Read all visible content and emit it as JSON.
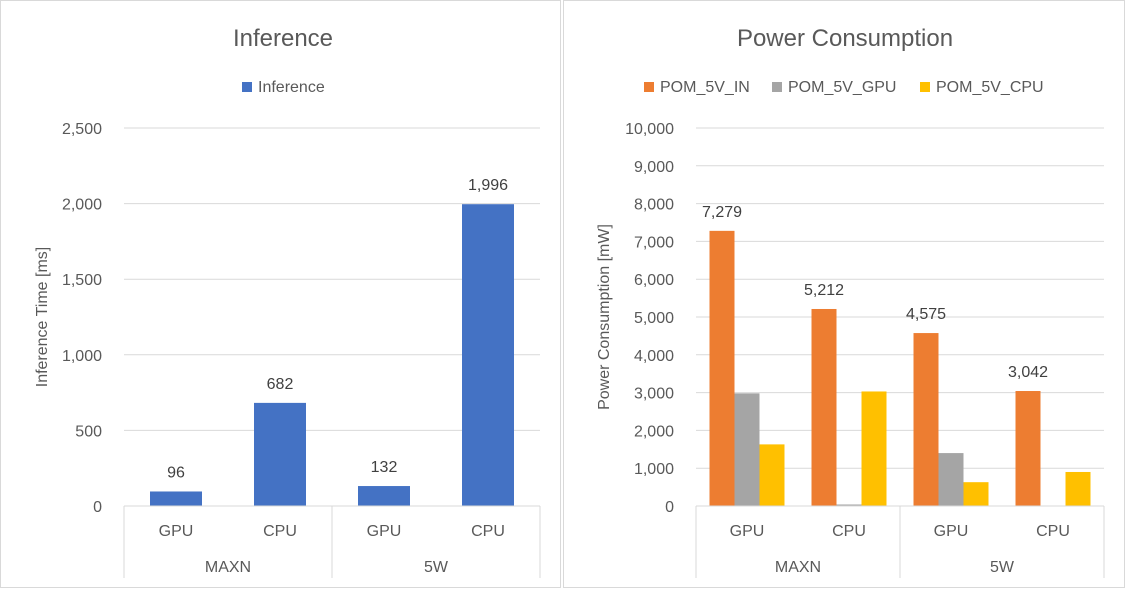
{
  "chart_data": [
    {
      "type": "bar",
      "title": "Inference",
      "xlabel": "",
      "ylabel": "Inference Time [ms]",
      "ylim": [
        0,
        2500
      ],
      "yticks": [
        "0",
        "500",
        "1,000",
        "1,500",
        "2,000",
        "2,500"
      ],
      "grid": true,
      "legend_position": "top",
      "groups": [
        {
          "label": "MAXN",
          "categories": [
            "GPU",
            "CPU"
          ]
        },
        {
          "label": "5W",
          "categories": [
            "GPU",
            "CPU"
          ]
        }
      ],
      "series": [
        {
          "name": "Inference",
          "color": "#4472c4",
          "values": [
            96,
            682,
            132,
            1996
          ],
          "labels": [
            "96",
            "682",
            "132",
            "1,996"
          ]
        }
      ]
    },
    {
      "type": "bar",
      "title": "Power Consumption",
      "xlabel": "",
      "ylabel": "Power Consumption [mW]",
      "ylim": [
        0,
        10000
      ],
      "yticks": [
        "0",
        "1,000",
        "2,000",
        "3,000",
        "4,000",
        "5,000",
        "6,000",
        "7,000",
        "8,000",
        "9,000",
        "10,000"
      ],
      "grid": true,
      "legend_position": "top",
      "groups": [
        {
          "label": "MAXN",
          "categories": [
            "GPU",
            "CPU"
          ]
        },
        {
          "label": "5W",
          "categories": [
            "GPU",
            "CPU"
          ]
        }
      ],
      "series": [
        {
          "name": "POM_5V_IN",
          "color": "#ed7d31",
          "values": [
            7279,
            5212,
            4575,
            3042
          ],
          "labels": [
            "7,279",
            "5,212",
            "4,575",
            "3,042"
          ]
        },
        {
          "name": "POM_5V_GPU",
          "color": "#a5a5a5",
          "values": [
            2980,
            40,
            1400,
            0
          ],
          "labels": [
            "",
            "",
            "",
            ""
          ]
        },
        {
          "name": "POM_5V_CPU",
          "color": "#ffc000",
          "values": [
            1630,
            3030,
            630,
            900
          ],
          "labels": [
            "",
            "",
            "",
            ""
          ]
        }
      ]
    }
  ]
}
